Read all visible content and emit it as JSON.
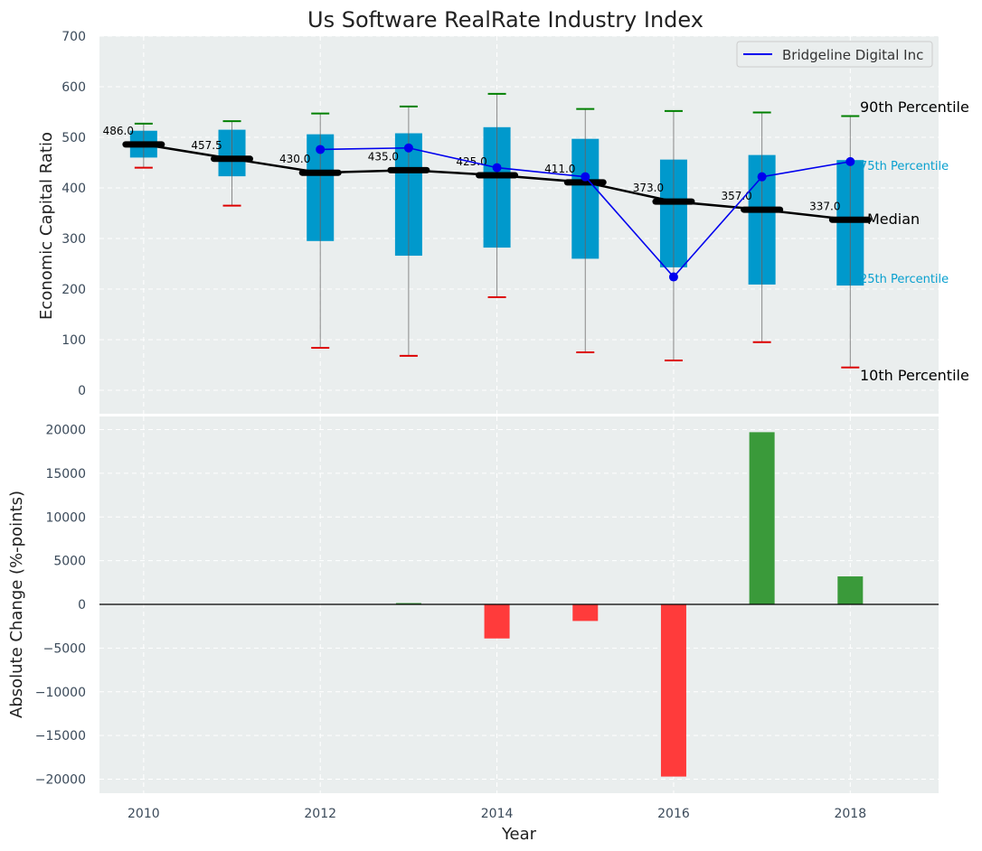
{
  "chart_data": [
    {
      "type": "box",
      "title": "Us Software RealRate Industry Index",
      "ylabel": "Economic Capital Ratio",
      "ylim": [
        -50,
        700
      ],
      "yticks": [
        0,
        100,
        200,
        300,
        400,
        500,
        600,
        700
      ],
      "grid": true,
      "legend_position": "top-right",
      "x": [
        2010,
        2011,
        2012,
        2013,
        2014,
        2015,
        2016,
        2017,
        2018
      ],
      "p10": [
        440,
        365,
        84,
        68,
        184,
        75,
        59,
        95,
        45
      ],
      "p25": [
        460,
        423,
        295,
        266,
        282,
        260,
        243,
        209,
        207
      ],
      "median": [
        486.0,
        457.5,
        430.0,
        435.0,
        425.0,
        411.0,
        373.0,
        357.0,
        337.0
      ],
      "median_labels": [
        "486.0",
        "457.5",
        "430.0",
        "435.0",
        "425.0",
        "411.0",
        "373.0",
        "357.0",
        "337.0"
      ],
      "p75": [
        513,
        515,
        506,
        508,
        520,
        497,
        456,
        465,
        455
      ],
      "p90": [
        527,
        532,
        547,
        561,
        586,
        556,
        552,
        549,
        542
      ],
      "series": [
        {
          "name": "Bridgeline Digital Inc",
          "color": "#0000ee",
          "x": [
            2012,
            2013,
            2014,
            2015,
            2016,
            2017,
            2018
          ],
          "values": [
            476,
            479,
            440,
            422,
            224,
            422,
            452
          ]
        }
      ],
      "annotations": {
        "p90": "90th Percentile",
        "p75": "75th Percentile",
        "median": "Median",
        "p25": "25th Percentile",
        "p10": "10th Percentile"
      },
      "colors": {
        "box": "#0099cc",
        "median_line": "#000000",
        "p90_cap": "#008000",
        "p10_cap": "#dd0000",
        "whisker": "#888888"
      }
    },
    {
      "type": "bar",
      "ylabel": "Absolute Change (%-points)",
      "xlabel": "Year",
      "ylim": [
        -21500,
        22000
      ],
      "yticks": [
        -20000,
        -15000,
        -10000,
        -5000,
        0,
        5000,
        10000,
        15000,
        20000
      ],
      "xlim": [
        2009.5,
        2019
      ],
      "xticks": [
        2010,
        2012,
        2014,
        2016,
        2018
      ],
      "grid": true,
      "x": [
        2013,
        2014,
        2015,
        2016,
        2017,
        2018
      ],
      "values": [
        150,
        -3900,
        -1900,
        -19700,
        19700,
        3200
      ],
      "colors": {
        "positive": "#3a9a3a",
        "negative": "#ff3b3b"
      }
    }
  ]
}
